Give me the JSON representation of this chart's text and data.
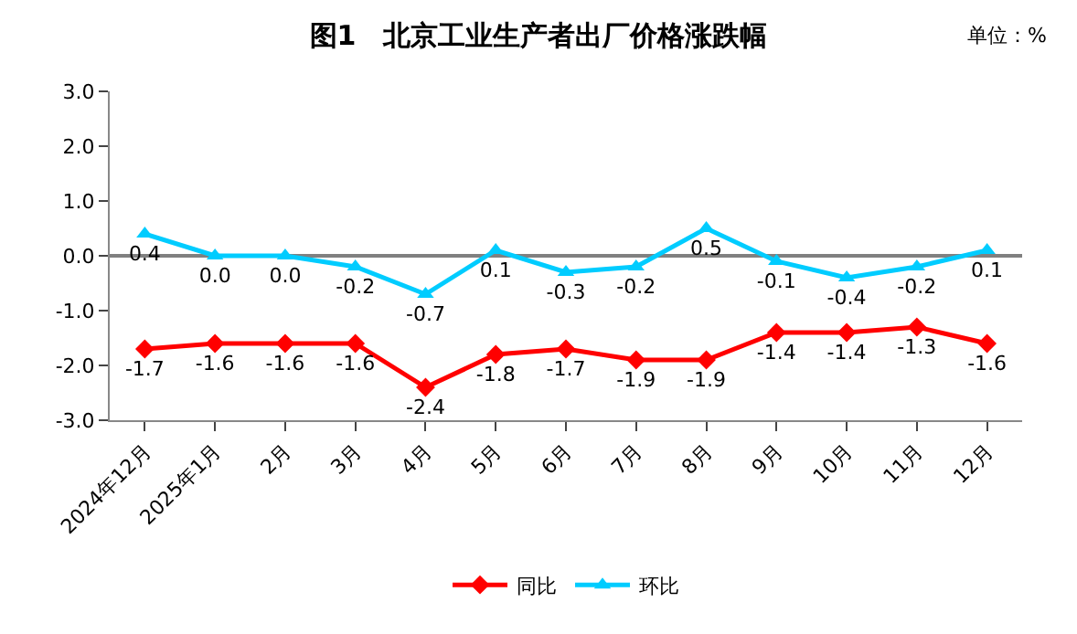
{
  "chart_data": {
    "type": "line",
    "title": "图1　北京工业生产者出厂价格涨跌幅",
    "annotations": [
      "单位：%"
    ],
    "categories": [
      "2024年12月",
      "2025年1月",
      "2月",
      "3月",
      "4月",
      "5月",
      "6月",
      "7月",
      "8月",
      "9月",
      "10月",
      "11月",
      "12月"
    ],
    "series": [
      {
        "name": "同比",
        "color": "#ff0000",
        "marker": "diamond",
        "values": [
          -1.7,
          -1.6,
          -1.6,
          -1.6,
          -2.4,
          -1.8,
          -1.7,
          -1.9,
          -1.9,
          -1.4,
          -1.4,
          -1.3,
          -1.6
        ],
        "value_labels": [
          "-1.7",
          "-1.6",
          "-1.6",
          "-1.6",
          "-2.4",
          "-1.8",
          "-1.7",
          "-1.9",
          "-1.9",
          "-1.4",
          "-1.4",
          "-1.3",
          "-1.6"
        ]
      },
      {
        "name": "环比",
        "color": "#00ccff",
        "marker": "triangle",
        "values": [
          0.4,
          0.0,
          0.0,
          -0.2,
          -0.7,
          0.1,
          -0.3,
          -0.2,
          0.5,
          -0.1,
          -0.4,
          -0.2,
          0.1
        ],
        "value_labels": [
          "0.4",
          "0.0",
          "0.0",
          "-0.2",
          "-0.7",
          "0.1",
          "-0.3",
          "-0.2",
          "0.5",
          "-0.1",
          "-0.4",
          "-0.2",
          "0.1"
        ]
      }
    ],
    "ylim": [
      -3.0,
      3.0
    ],
    "yticks": [
      {
        "value": -3,
        "label": "-3.0"
      },
      {
        "value": -2,
        "label": "-2.0"
      },
      {
        "value": -1,
        "label": "-1.0"
      },
      {
        "value": 0,
        "label": "0.0"
      },
      {
        "value": 1,
        "label": "1.0"
      },
      {
        "value": 2,
        "label": "2.0"
      },
      {
        "value": 3,
        "label": "3.0"
      }
    ],
    "ref_lines": [
      {
        "axis": "y",
        "value": 0,
        "color": "#808080"
      }
    ],
    "grid": false,
    "legend": "bottom",
    "line_style": "solid"
  }
}
